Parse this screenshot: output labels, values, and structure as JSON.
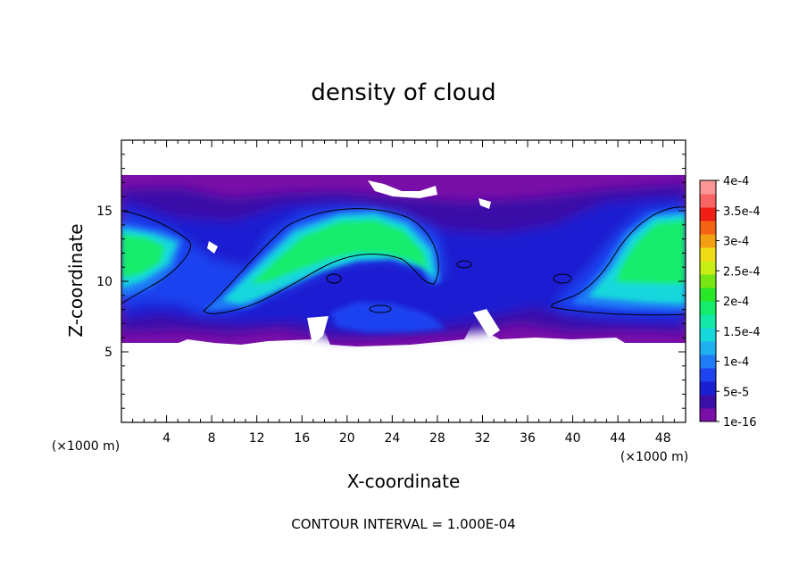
{
  "chart_data": {
    "type": "heatmap",
    "title": "density of cloud",
    "xlabel": "X-coordinate",
    "ylabel": "Z-coordinate",
    "x_unit": "(×1000 m)",
    "x_unit_right": "(×1000 m)",
    "xlim": [
      0,
      50
    ],
    "ylim": [
      0,
      20
    ],
    "x_ticks": [
      "4",
      "8",
      "12",
      "16",
      "20",
      "24",
      "28",
      "32",
      "36",
      "40",
      "44",
      "48"
    ],
    "y_ticks": [
      "5",
      "10",
      "15"
    ],
    "footer": "CONTOUR INTERVAL = 1.000E-04",
    "colorbar": {
      "labels": [
        "1e-16",
        "5e-5",
        "1e-4",
        "1.5e-4",
        "2e-4",
        "2.5e-4",
        "3e-4",
        "3.5e-4",
        "4e-4"
      ],
      "colors": [
        "#7a0fa8",
        "#3b0fa8",
        "#1a1fd2",
        "#1f43f0",
        "#1f7cf5",
        "#1fb0f0",
        "#14d8dc",
        "#12e8a8",
        "#14ec6c",
        "#28e628",
        "#78e614",
        "#c8ee14",
        "#f0dc14",
        "#f5a014",
        "#f56414",
        "#f01e14",
        "#f86464",
        "#fa9696"
      ]
    },
    "field": {
      "background": "#7a0fa8",
      "cloud_base_z": 5.5,
      "cloud_top_z": 17.5,
      "features": [
        {
          "name": "left-core",
          "x": 2.5,
          "z": 11.5,
          "peak": 0.00021
        },
        {
          "name": "central-arch",
          "x": 18.5,
          "z": 12.5,
          "peak": 0.00022
        },
        {
          "name": "right-core",
          "x": 46.5,
          "z": 11.5,
          "peak": 0.00023
        },
        {
          "name": "lower-middle-cell",
          "x": 24.5,
          "z": 7.5,
          "peak": 8e-05
        }
      ],
      "contour_level": 0.0001
    }
  }
}
